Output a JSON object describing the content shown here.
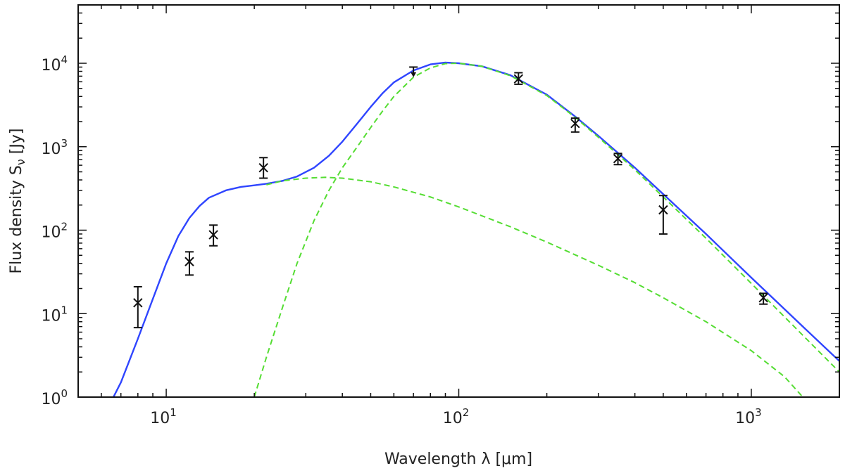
{
  "chart_data": {
    "type": "scatter",
    "xlabel": "Wavelength λ [μm]",
    "ylabel": "Flux density S",
    "ylabel_subscript": "ν",
    "ylabel_unit": " [Jy]",
    "x_scale": "log",
    "y_scale": "log",
    "xlim": [
      5,
      2000
    ],
    "ylim": [
      1,
      50000
    ],
    "grid": false,
    "x_major_ticks": [
      {
        "value": 10,
        "base": "10",
        "exp": "1"
      },
      {
        "value": 100,
        "base": "10",
        "exp": "2"
      },
      {
        "value": 1000,
        "base": "10",
        "exp": "3"
      }
    ],
    "y_major_ticks": [
      {
        "value": 1,
        "base": "10",
        "exp": "0"
      },
      {
        "value": 10,
        "base": "10",
        "exp": "1"
      },
      {
        "value": 100,
        "base": "10",
        "exp": "2"
      },
      {
        "value": 1000,
        "base": "10",
        "exp": "3"
      },
      {
        "value": 10000,
        "base": "10",
        "exp": "4"
      }
    ],
    "points": [
      {
        "x": 8.0,
        "y": 13.5,
        "err_low": 6.8,
        "err_high": 21.0
      },
      {
        "x": 12.0,
        "y": 42.0,
        "err_low": 29.0,
        "err_high": 55.0
      },
      {
        "x": 14.5,
        "y": 88.0,
        "err_low": 65.0,
        "err_high": 115.0
      },
      {
        "x": 21.5,
        "y": 560.0,
        "err_low": 420.0,
        "err_high": 740.0
      },
      {
        "x": 160.0,
        "y": 6500.0,
        "err_low": 5600.0,
        "err_high": 7700.0
      },
      {
        "x": 250.0,
        "y": 1900.0,
        "err_low": 1500.0,
        "err_high": 2200.0
      },
      {
        "x": 350.0,
        "y": 720.0,
        "err_low": 610.0,
        "err_high": 830.0
      },
      {
        "x": 500.0,
        "y": 175.0,
        "err_low": 90.0,
        "err_high": 260.0
      },
      {
        "x": 1100.0,
        "y": 15.5,
        "err_low": 13.0,
        "err_high": 17.5
      }
    ],
    "upper_limits": [
      {
        "x": 70.0,
        "y": 9000.0,
        "y_arrow_tip": 6800.0
      }
    ],
    "series": [
      {
        "style": "solid",
        "color": "#2f45ff",
        "x": [
          6.6,
          7.0,
          8.0,
          9.0,
          10.0,
          11.0,
          12.0,
          13.0,
          14.0,
          16.0,
          18.0,
          20.0,
          22.0,
          25.0,
          28.0,
          32.0,
          36.0,
          40.0,
          45.0,
          50.0,
          55.0,
          60.0,
          70.0,
          80.0,
          90.0,
          100.0,
          120.0,
          150.0,
          200.0,
          250.0,
          300.0,
          400.0,
          500.0,
          700.0,
          1000.0,
          1500.0,
          2000.0
        ],
        "y": [
          1.0,
          1.5,
          5.0,
          15.0,
          40.0,
          85.0,
          140.0,
          195.0,
          245.0,
          300.0,
          330.0,
          345.0,
          360.0,
          390.0,
          440.0,
          560.0,
          780.0,
          1150.0,
          1900.0,
          3000.0,
          4400.0,
          5900.0,
          8200.0,
          9700.0,
          10200.0,
          10000.0,
          9200.0,
          7200.0,
          4200.0,
          2300.0,
          1350.0,
          560.0,
          270.0,
          90.0,
          27.0,
          7.0,
          2.7
        ]
      },
      {
        "style": "dashed",
        "color": "#55dd33",
        "x": [
          20.0,
          22.0,
          25.0,
          28.0,
          32.0,
          36.0,
          40.0,
          45.0,
          50.0,
          55.0,
          60.0,
          70.0,
          80.0,
          90.0,
          100.0,
          120.0,
          150.0,
          200.0,
          250.0,
          300.0,
          400.0,
          500.0,
          700.0,
          1000.0,
          1500.0,
          2000.0
        ],
        "y": [
          1.0,
          3.0,
          12.0,
          40.0,
          130.0,
          300.0,
          560.0,
          1000.0,
          1700.0,
          2700.0,
          4000.0,
          6800.0,
          8800.0,
          9900.0,
          10000.0,
          9200.0,
          7100.0,
          4100.0,
          2250.0,
          1300.0,
          530.0,
          250.0,
          80.0,
          23.0,
          5.5,
          2.0
        ]
      },
      {
        "style": "dashed",
        "color": "#55dd33",
        "x": [
          22.0,
          25.0,
          30.0,
          35.0,
          40.0,
          50.0,
          60.0,
          80.0,
          100.0,
          150.0,
          200.0,
          300.0,
          400.0,
          500.0,
          700.0,
          1000.0,
          1300.0,
          1500.0
        ],
        "y": [
          350.0,
          390.0,
          420.0,
          430.0,
          420.0,
          380.0,
          330.0,
          250.0,
          190.0,
          110.0,
          72.0,
          38.0,
          23.5,
          15.5,
          8.0,
          3.6,
          1.75,
          1.0
        ]
      }
    ]
  }
}
